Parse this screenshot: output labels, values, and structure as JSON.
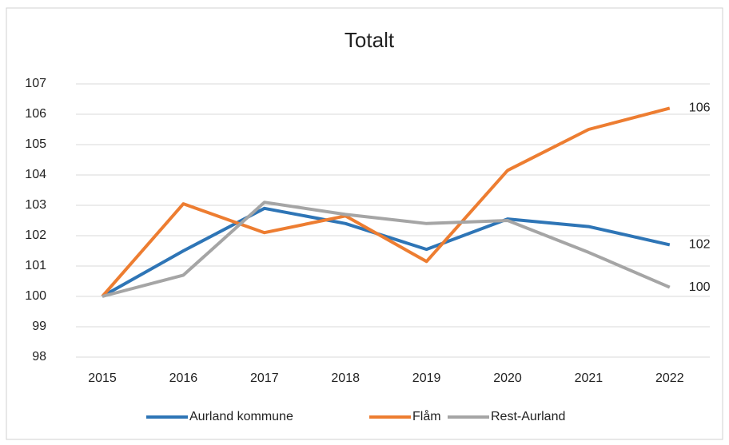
{
  "chart_data": {
    "type": "line",
    "title": "Totalt",
    "categories": [
      "2015",
      "2016",
      "2017",
      "2018",
      "2019",
      "2020",
      "2021",
      "2022"
    ],
    "series": [
      {
        "name": "Aurland kommune",
        "color": "#2e75b6",
        "values": [
          100,
          101.5,
          102.9,
          102.4,
          101.55,
          102.55,
          102.3,
          101.7
        ],
        "value_labels": [
          null,
          null,
          null,
          null,
          null,
          null,
          null,
          "102"
        ]
      },
      {
        "name": "Flåm",
        "color": "#ed7d31",
        "values": [
          100,
          103.05,
          102.1,
          102.65,
          101.15,
          104.15,
          105.5,
          106.2
        ],
        "value_labels": [
          null,
          null,
          null,
          null,
          null,
          null,
          null,
          "106"
        ]
      },
      {
        "name": "Rest-Aurland",
        "color": "#a5a5a5",
        "values": [
          100,
          100.7,
          103.1,
          102.7,
          102.4,
          102.5,
          101.45,
          100.3
        ],
        "value_labels": [
          null,
          null,
          null,
          null,
          null,
          null,
          null,
          "100"
        ]
      }
    ],
    "ylim": [
      98,
      107
    ],
    "yticks": [
      98,
      99,
      100,
      101,
      102,
      103,
      104,
      105,
      106,
      107
    ],
    "grid": true,
    "legend": "bottom"
  }
}
